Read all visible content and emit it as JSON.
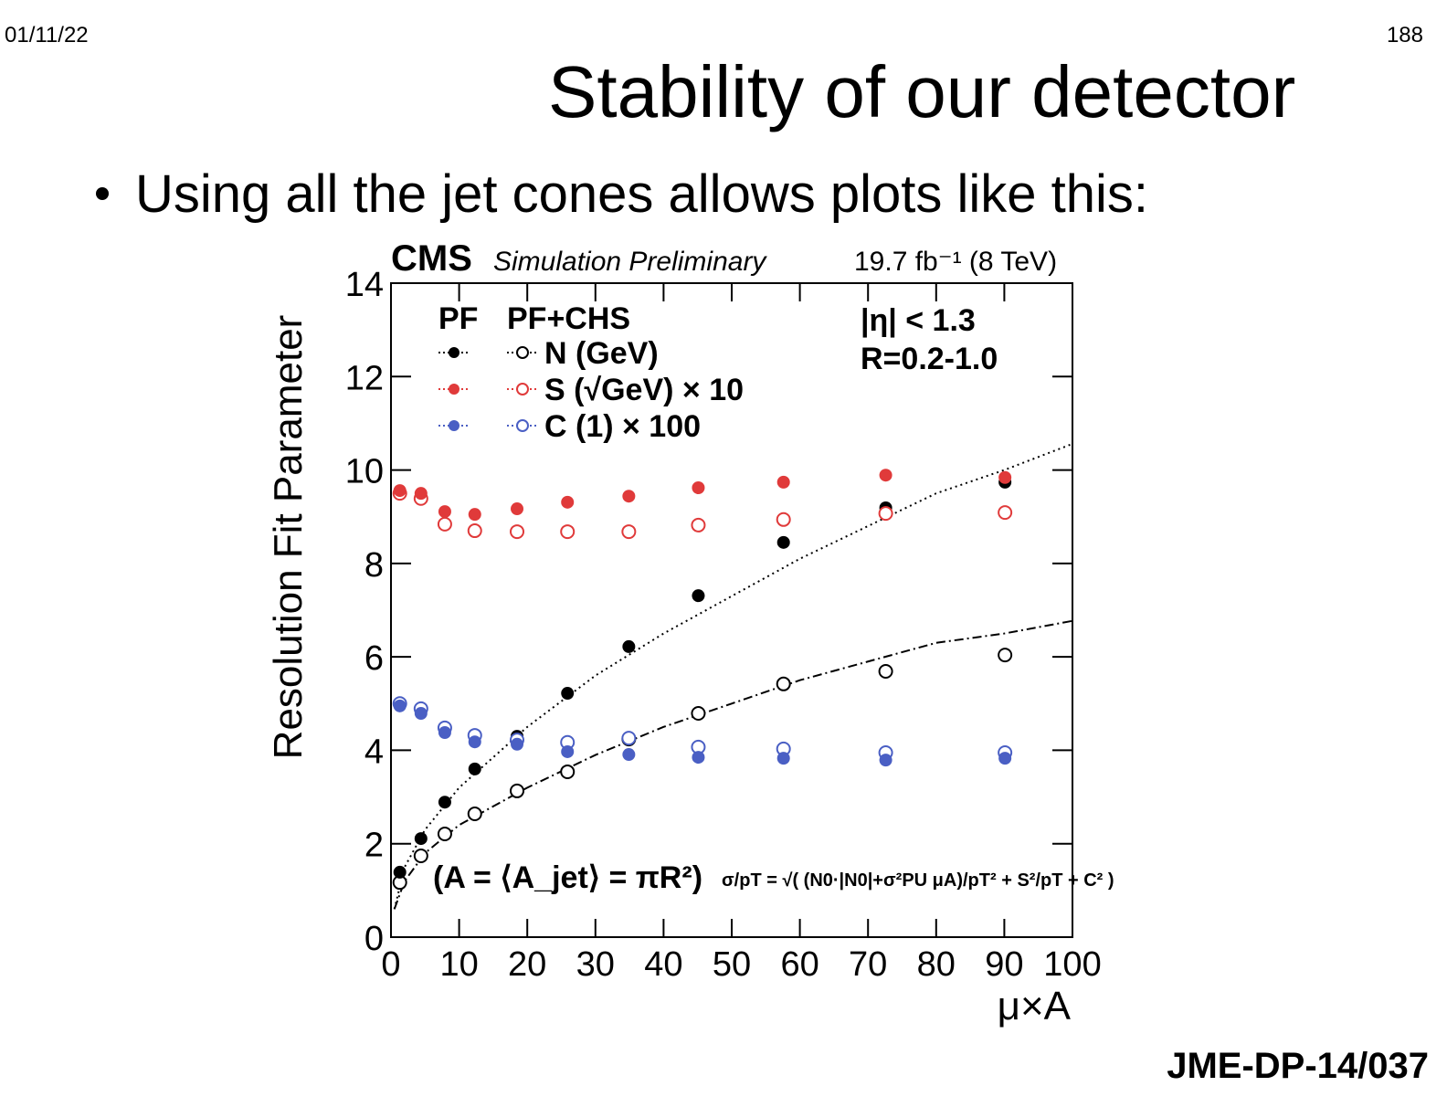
{
  "header": {
    "date": "01/11/22",
    "page": "188",
    "title": "Stability of our detector"
  },
  "bullet": "Using all the jet cones allows plots like this:",
  "footer": "JME-DP-14/037",
  "chart_data": {
    "type": "scatter",
    "experiment": "CMS",
    "subtitle": "Simulation Preliminary",
    "luminosity": "19.7 fb⁻¹ (8 TeV)",
    "xlabel": "μ×A",
    "ylabel": "Resolution Fit Parameter",
    "xlim": [
      0,
      100
    ],
    "xticks": [
      0,
      10,
      20,
      30,
      40,
      50,
      60,
      70,
      80,
      90,
      100
    ],
    "ylim": [
      0,
      14
    ],
    "yticks": [
      0,
      2,
      4,
      6,
      8,
      10,
      12,
      14
    ],
    "legend_columns": [
      "PF",
      "PF+CHS"
    ],
    "x": [
      1.3,
      4.4,
      7.9,
      12.3,
      18.5,
      25.9,
      34.9,
      45.1,
      57.6,
      72.6,
      90.1
    ],
    "series": [
      {
        "name": "N (GeV)",
        "color": "#000000",
        "values": [
          1.39,
          2.11,
          2.89,
          3.6,
          4.3,
          5.22,
          6.22,
          7.31,
          8.45,
          9.19,
          9.74
        ],
        "open_values": [
          1.17,
          1.74,
          2.21,
          2.64,
          3.13,
          3.54,
          4.24,
          4.79,
          5.42,
          5.69,
          6.04
        ]
      },
      {
        "name": "S (√GeV) × 10",
        "color": "#e03a3a",
        "values": [
          9.56,
          9.5,
          9.11,
          9.05,
          9.17,
          9.31,
          9.44,
          9.62,
          9.74,
          9.89,
          9.84
        ],
        "open_values": [
          9.5,
          9.39,
          8.84,
          8.7,
          8.68,
          8.68,
          8.68,
          8.82,
          8.94,
          9.07,
          9.09
        ]
      },
      {
        "name": "C (1) × 100",
        "color": "#4a5fc4",
        "values": [
          4.95,
          4.79,
          4.38,
          4.18,
          4.13,
          3.97,
          3.91,
          3.85,
          3.83,
          3.79,
          3.83
        ],
        "open_values": [
          5.0,
          4.89,
          4.48,
          4.32,
          4.22,
          4.17,
          4.26,
          4.07,
          4.03,
          3.95,
          3.95
        ]
      }
    ],
    "fits": [
      {
        "style": "dotted",
        "x": [
          0.5,
          2,
          5,
          10,
          20,
          30,
          40,
          50,
          60,
          70,
          80,
          90,
          100
        ],
        "values": [
          0.6,
          1.5,
          2.3,
          3.2,
          4.5,
          5.6,
          6.5,
          7.3,
          8.1,
          8.8,
          9.5,
          10.0,
          10.56
        ]
      },
      {
        "style": "dashdot",
        "x": [
          0.5,
          2,
          5,
          10,
          20,
          30,
          40,
          50,
          60,
          70,
          80,
          90,
          100
        ],
        "values": [
          0.6,
          1.2,
          1.8,
          2.4,
          3.2,
          3.9,
          4.5,
          5.0,
          5.5,
          5.9,
          6.3,
          6.5,
          6.77
        ]
      }
    ],
    "annotations": [
      "|η| < 1.3",
      "R=0.2-1.0",
      "(A = ⟨A_jet⟩ = πR²)",
      "σ/pT = √( (N0·|N0|+σ²PU μA)/pT² + S²/pT + C² )"
    ]
  }
}
